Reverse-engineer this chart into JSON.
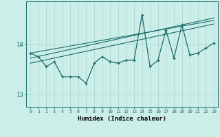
{
  "title": "",
  "xlabel": "Humidex (Indice chaleur)",
  "background_color": "#cceee8",
  "line_color": "#1a6b6b",
  "grid_color": "#aad4ce",
  "x_data": [
    0,
    1,
    2,
    3,
    4,
    5,
    6,
    7,
    8,
    9,
    10,
    11,
    12,
    13,
    14,
    15,
    16,
    17,
    18,
    19,
    20,
    21,
    22,
    23
  ],
  "y_main": [
    13.82,
    13.75,
    13.55,
    13.65,
    13.35,
    13.35,
    13.35,
    13.22,
    13.62,
    13.75,
    13.65,
    13.62,
    13.68,
    13.68,
    14.58,
    13.55,
    13.68,
    14.28,
    13.72,
    14.38,
    13.78,
    13.82,
    13.92,
    14.02
  ],
  "trend1_x": [
    0,
    23
  ],
  "trend1_y": [
    13.82,
    14.47
  ],
  "trend2_x": [
    0,
    23
  ],
  "trend2_y": [
    13.72,
    14.52
  ],
  "trend3_x": [
    0,
    23
  ],
  "trend3_y": [
    13.62,
    14.4
  ],
  "ylim": [
    12.75,
    14.85
  ],
  "xlim": [
    -0.5,
    23.5
  ],
  "yticks": [
    13,
    14
  ],
  "xticks": [
    0,
    1,
    2,
    3,
    4,
    5,
    6,
    7,
    8,
    9,
    10,
    11,
    12,
    13,
    14,
    15,
    16,
    17,
    18,
    19,
    20,
    21,
    22,
    23
  ],
  "figsize": [
    3.2,
    2.0
  ],
  "dpi": 100
}
